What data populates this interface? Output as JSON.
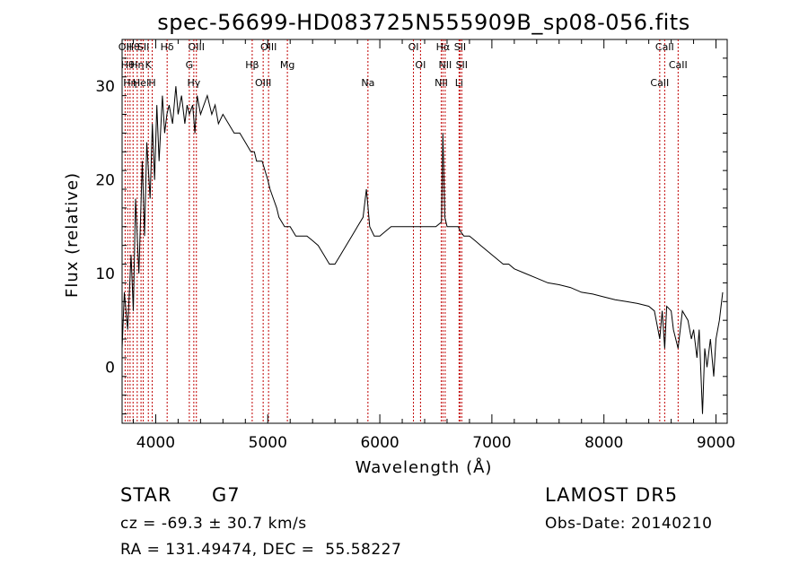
{
  "chart_data": {
    "type": "line",
    "title": "spec-56699-HD083725N555909B_sp08-056.fits",
    "xlabel": "Wavelength (Å)",
    "ylabel": "Flux (relative)",
    "xlim": [
      3700,
      9100
    ],
    "ylim": [
      -6,
      35
    ],
    "x_ticks": [
      4000,
      5000,
      6000,
      7000,
      8000,
      9000
    ],
    "y_ticks": [
      0,
      10,
      20,
      30
    ],
    "grid": false,
    "series": [
      {
        "x": [
          3700,
          3720,
          3750,
          3780,
          3800,
          3820,
          3850,
          3880,
          3900,
          3920,
          3950,
          3970,
          3990,
          4010,
          4030,
          4060,
          4080,
          4100,
          4120,
          4150,
          4180,
          4200,
          4230,
          4260,
          4280,
          4300,
          4330,
          4350,
          4370,
          4400,
          4430,
          4460,
          4500,
          4530,
          4560,
          4600,
          4650,
          4700,
          4750,
          4800,
          4850,
          4880,
          4900,
          4950,
          5000,
          5020,
          5050,
          5080,
          5100,
          5150,
          5200,
          5250,
          5300,
          5350,
          5400,
          5450,
          5500,
          5550,
          5600,
          5650,
          5700,
          5750,
          5800,
          5850,
          5880,
          5895,
          5910,
          5950,
          6000,
          6050,
          6100,
          6150,
          6200,
          6250,
          6300,
          6350,
          6400,
          6450,
          6500,
          6550,
          6563,
          6580,
          6600,
          6650,
          6700,
          6720,
          6750,
          6800,
          6850,
          6900,
          6950,
          7000,
          7050,
          7100,
          7150,
          7200,
          7300,
          7400,
          7500,
          7600,
          7700,
          7800,
          7900,
          8000,
          8100,
          8200,
          8300,
          8400,
          8450,
          8498,
          8520,
          8542,
          8560,
          8600,
          8620,
          8662,
          8700,
          8750,
          8780,
          8800,
          8830,
          8850,
          8880,
          8900,
          8920,
          8950,
          8980,
          9000,
          9030,
          9060
        ],
        "y": [
          2,
          8,
          4,
          12,
          6,
          18,
          10,
          22,
          14,
          24,
          18,
          26,
          20,
          28,
          22,
          29,
          25,
          27,
          28,
          26,
          30,
          27,
          29,
          26,
          28,
          27,
          28,
          25,
          29,
          27,
          28,
          29,
          27,
          28,
          26,
          27,
          26,
          25,
          25,
          24,
          23,
          23,
          22,
          22,
          20,
          19,
          18,
          17,
          16,
          15,
          15,
          14,
          14,
          14,
          13.5,
          13,
          12,
          11,
          11,
          12,
          13,
          14,
          15,
          16,
          19,
          17,
          15,
          14,
          14,
          14.5,
          15,
          15,
          15,
          15,
          15,
          15,
          15,
          15,
          15,
          15.5,
          25,
          16,
          15,
          15,
          15,
          14.5,
          14,
          14,
          13.5,
          13,
          12.5,
          12,
          11.5,
          11,
          11,
          10.5,
          10,
          9.5,
          9,
          8.8,
          8.5,
          8,
          7.8,
          7.5,
          7.2,
          7,
          6.8,
          6.5,
          6,
          3,
          6,
          2,
          6.5,
          6,
          4,
          2,
          6,
          5,
          3,
          4,
          1,
          4,
          -5,
          2,
          0,
          3,
          -1,
          3,
          5,
          8
        ]
      }
    ],
    "lines": [
      {
        "wave": 3727,
        "label": "OII"
      },
      {
        "wave": 3750,
        "label": "Hθ"
      },
      {
        "wave": 3771,
        "label": "Hη"
      },
      {
        "wave": 3798,
        "label": "Hθ"
      },
      {
        "wave": 3835,
        "label": "Hη"
      },
      {
        "wave": 3869,
        "label": "Hel"
      },
      {
        "wave": 3889,
        "label": "SII"
      },
      {
        "wave": 3934,
        "label": "K"
      },
      {
        "wave": 3969,
        "label": "H"
      },
      {
        "wave": 4102,
        "label": "Hδ"
      },
      {
        "wave": 4300,
        "label": "G"
      },
      {
        "wave": 4340,
        "label": "Hγ"
      },
      {
        "wave": 4363,
        "label": "OIII"
      },
      {
        "wave": 4861,
        "label": "Hβ"
      },
      {
        "wave": 4959,
        "label": "OIII"
      },
      {
        "wave": 5007,
        "label": "OIII"
      },
      {
        "wave": 5175,
        "label": "Mg"
      },
      {
        "wave": 5894,
        "label": "Na"
      },
      {
        "wave": 6300,
        "label": "OI"
      },
      {
        "wave": 6363,
        "label": "OI"
      },
      {
        "wave": 6548,
        "label": "NII"
      },
      {
        "wave": 6563,
        "label": "Hα"
      },
      {
        "wave": 6583,
        "label": "NII"
      },
      {
        "wave": 6707,
        "label": "Li"
      },
      {
        "wave": 6716,
        "label": "SII"
      },
      {
        "wave": 6731,
        "label": "SII"
      },
      {
        "wave": 8498,
        "label": "CaII"
      },
      {
        "wave": 8542,
        "label": "CaII"
      },
      {
        "wave": 8662,
        "label": "CaII"
      }
    ]
  },
  "info": {
    "class": "STAR",
    "subclass": "G7",
    "cz": "cz = -69.3 ± 30.7 km/s",
    "coords": "RA = 131.49474, DEC =  55.58227",
    "survey": "LAMOST DR5",
    "obs_date": "Obs-Date: 20140210"
  }
}
